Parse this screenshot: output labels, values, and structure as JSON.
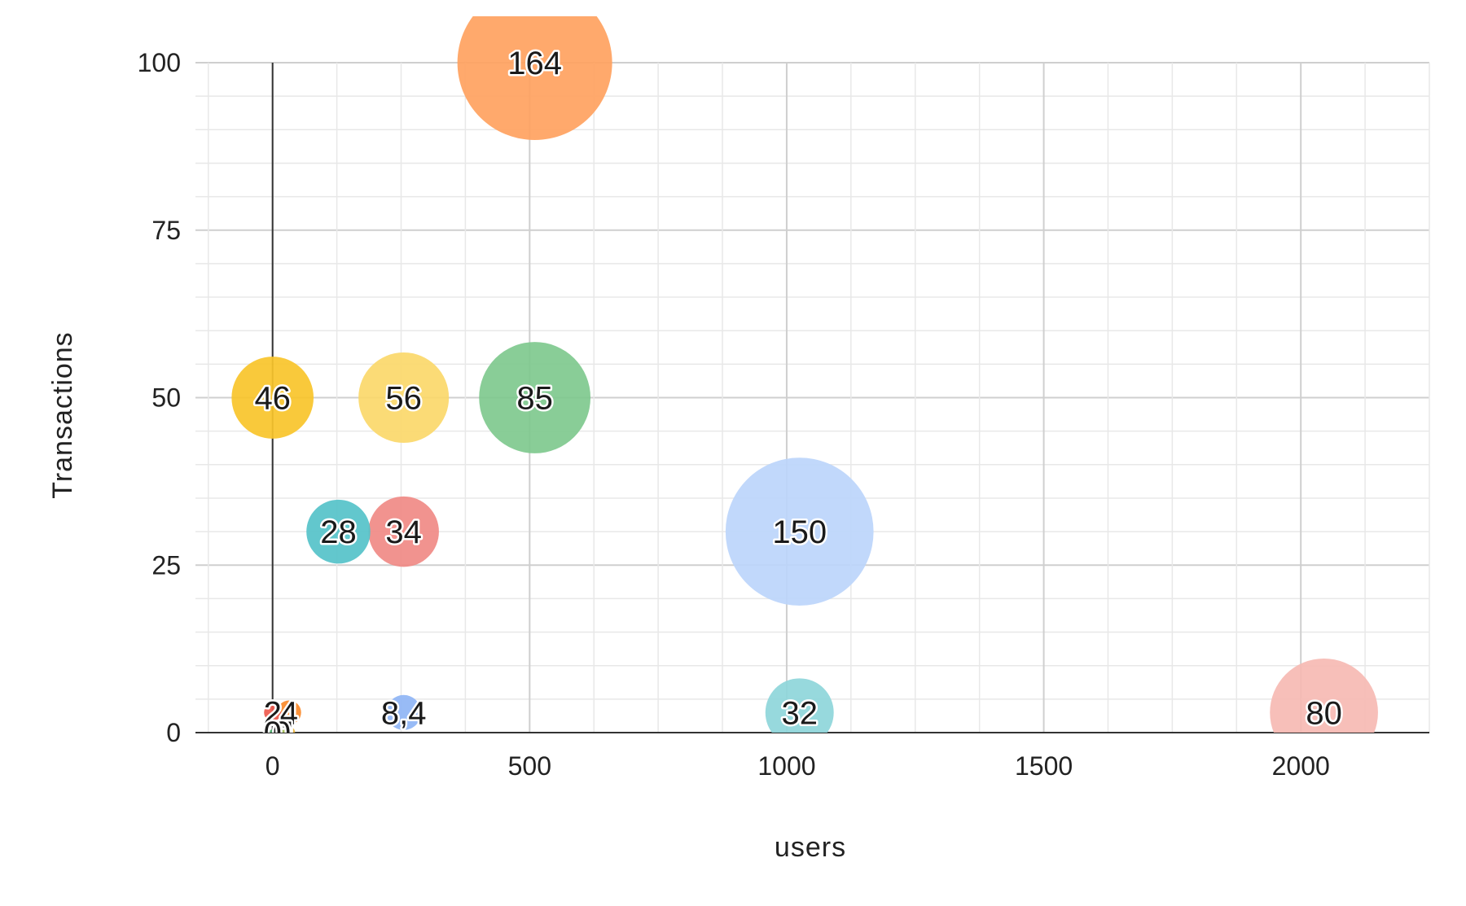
{
  "chart_data": {
    "type": "scatter",
    "variant": "bubble",
    "title": "",
    "xlabel": "users",
    "ylabel": "Transactions",
    "xlim": [
      -150,
      2250
    ],
    "ylim": [
      0,
      100
    ],
    "x_ticks": [
      0,
      500,
      1000,
      1500,
      2000
    ],
    "y_ticks": [
      0,
      25,
      50,
      75,
      100
    ],
    "grid": true,
    "legend": "none",
    "points": [
      {
        "x": 510,
        "y": 100,
        "size": 164,
        "label": "164",
        "color": "#FFA260"
      },
      {
        "x": 1025,
        "y": 30,
        "size": 150,
        "label": "150",
        "color": "#BCD5FB"
      },
      {
        "x": 510,
        "y": 50,
        "size": 85,
        "label": "85",
        "color": "#7FC98E"
      },
      {
        "x": 2045,
        "y": 3,
        "size": 80,
        "label": "80",
        "color": "#F6BAB3"
      },
      {
        "x": 255,
        "y": 50,
        "size": 56,
        "label": "56",
        "color": "#FBD86A"
      },
      {
        "x": 0,
        "y": 50,
        "size": 46,
        "label": "46",
        "color": "#F8C42A"
      },
      {
        "x": 255,
        "y": 30,
        "size": 34,
        "label": "34",
        "color": "#F08A86"
      },
      {
        "x": 1025,
        "y": 3,
        "size": 32,
        "label": "32",
        "color": "#8ED6DA"
      },
      {
        "x": 128,
        "y": 30,
        "size": 28,
        "label": "28",
        "color": "#55C2C9"
      },
      {
        "x": 255,
        "y": 3,
        "size": 8.4,
        "label": "8,4",
        "color": "#8FB5F5"
      },
      {
        "x": 32,
        "y": 3,
        "size": 4,
        "label": "4",
        "color": "#FB8A2A"
      },
      {
        "x": 0,
        "y": 3,
        "size": 2,
        "label": "2",
        "color": "#EE5A4E"
      },
      {
        "x": 32,
        "y": 0,
        "size": 1,
        "label": "1",
        "color": "#E7B13A"
      },
      {
        "x": 18,
        "y": 0,
        "size": 0.5,
        "label": "0",
        "color": "#9FBF5C"
      },
      {
        "x": 0,
        "y": 0,
        "size": 0.3,
        "label": "0",
        "color": "#4CA86A"
      }
    ]
  }
}
